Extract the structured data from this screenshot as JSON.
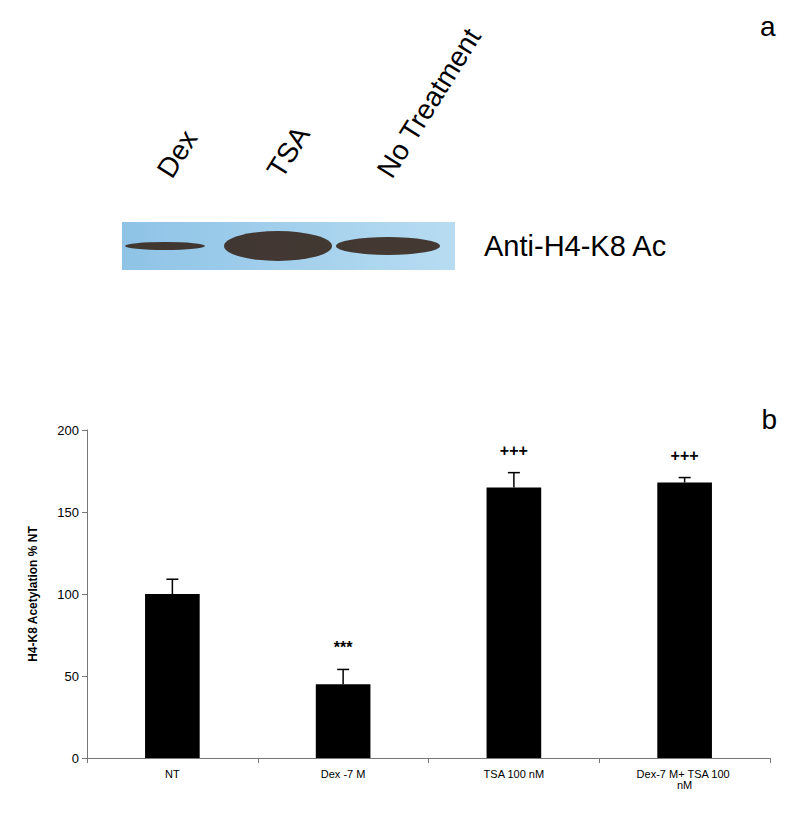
{
  "blot": {
    "panel_label": "a",
    "lanes": [
      "Dex",
      "TSA",
      "No Treatment"
    ],
    "antibody": "Anti-H4-K8 Ac"
  },
  "chart_data": {
    "type": "bar",
    "panel_label": "b",
    "categories": [
      "NT",
      "Dex -7 M",
      "TSA 100 nM",
      "Dex-7 M+ TSA 100 nM"
    ],
    "values": [
      100,
      45,
      165,
      168
    ],
    "errors": [
      9,
      9,
      9,
      3
    ],
    "significance": [
      null,
      "***",
      "+++",
      "+++"
    ],
    "color": "#000000",
    "ylabel": "H4-K8 Acetylation % NT",
    "ylim": [
      0,
      200
    ],
    "yticks": [
      0,
      50,
      100,
      150,
      200
    ],
    "grid": false
  }
}
